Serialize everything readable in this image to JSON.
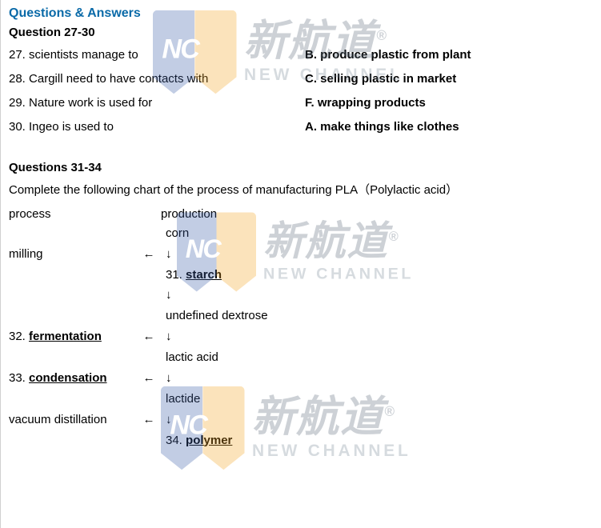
{
  "header": {
    "section_title": "Questions & Answers"
  },
  "group1": {
    "heading": "Question 27-30",
    "rows": [
      {
        "q": "27. scientists manage to",
        "a": "B. produce plastic from plant"
      },
      {
        "q": "28. Cargill need to have contacts with",
        "a": "C. selling plastic in market"
      },
      {
        "q": "29. Nature work is used for",
        "a": "F. wrapping products"
      },
      {
        "q": "30. Ingeo is used to",
        "a": "A. make things like clothes"
      }
    ]
  },
  "group2": {
    "heading": "Questions 31-34",
    "instruction": "Complete the following chart of the process of manufacturing PLA（Polylactic acid）",
    "col_process": "process",
    "col_production": "production",
    "steps": {
      "prod_corn": "corn",
      "proc_milling": "milling",
      "ans31_prefix": "31. ",
      "ans31": "starch",
      "prod_dextrose": "undefined dextrose",
      "ans32_prefix": "32. ",
      "ans32": "fermentation",
      "prod_lactic": "lactic acid",
      "ans33_prefix": "33. ",
      "ans33": "condensation",
      "prod_lactide": "lactide",
      "proc_vacuum": "vacuum distillation",
      "ans34_prefix": "34. ",
      "ans34": "polymer"
    },
    "arrows": {
      "left": "←",
      "down": "↓"
    }
  },
  "watermark": {
    "logo_text": "NC",
    "cn": "新航道",
    "reg": "®",
    "en": "NEW CHANNEL",
    "colors": {
      "shield_left": "#3a5ea8",
      "shield_right": "#f5a623",
      "text": "#5b6b7a"
    }
  }
}
